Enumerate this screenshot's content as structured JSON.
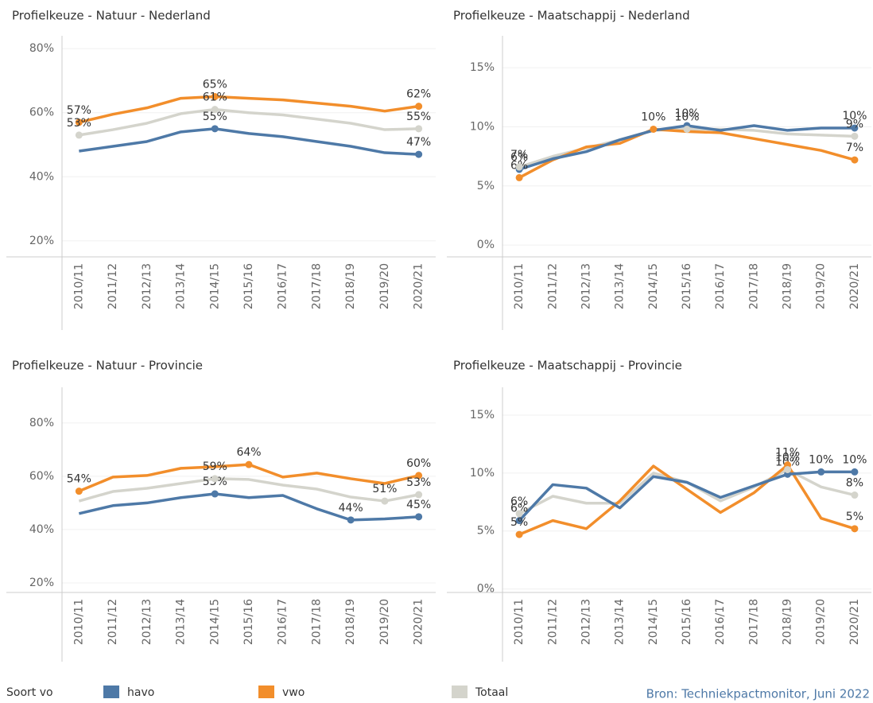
{
  "chart_data": [
    {
      "type": "line",
      "title": "Profielkeuze - Natuur - Nederland",
      "categories": [
        "2010/11",
        "2011/12",
        "2012/13",
        "2013/14",
        "2014/15",
        "2015/16",
        "2016/17",
        "2017/18",
        "2018/19",
        "2019/20",
        "2020/21"
      ],
      "ylim": [
        15,
        84
      ],
      "yticks": [
        {
          "value": 20,
          "label": "20%"
        },
        {
          "value": 40,
          "label": "40%"
        },
        {
          "value": 60,
          "label": "60%"
        },
        {
          "value": 80,
          "label": "80%"
        }
      ],
      "grid": true,
      "series": [
        {
          "name": "havo",
          "color": "#4e79a7",
          "values": [
            48,
            49.5,
            51,
            54,
            55,
            53.5,
            52.5,
            51,
            49.5,
            47.5,
            47
          ],
          "value_labels": [
            null,
            null,
            null,
            null,
            "55%",
            null,
            null,
            null,
            null,
            null,
            "47%"
          ]
        },
        {
          "name": "vwo",
          "color": "#f28e2b",
          "values": [
            57,
            59.5,
            61.5,
            64.5,
            65,
            64.5,
            64,
            63,
            62,
            60.5,
            62
          ],
          "value_labels": [
            "57%",
            null,
            null,
            null,
            "65%",
            null,
            null,
            null,
            null,
            null,
            "62%"
          ]
        },
        {
          "name": "Totaal",
          "color": "#d4d4cc",
          "values": [
            53,
            54.7,
            56.7,
            59.7,
            61,
            60,
            59.3,
            58,
            56.7,
            54.7,
            55
          ],
          "value_labels": [
            "53%",
            null,
            null,
            null,
            "61%",
            null,
            null,
            null,
            null,
            null,
            "55%"
          ]
        }
      ]
    },
    {
      "type": "line",
      "title": "Profielkeuze - Maatschappij - Nederland",
      "categories": [
        "2010/11",
        "2011/12",
        "2012/13",
        "2013/14",
        "2014/15",
        "2015/16",
        "2016/17",
        "2017/18",
        "2018/19",
        "2019/20",
        "2020/21"
      ],
      "ylim": [
        -1,
        17.7
      ],
      "yticks": [
        {
          "value": 0,
          "label": "0%"
        },
        {
          "value": 5,
          "label": "5%"
        },
        {
          "value": 10,
          "label": "10%"
        },
        {
          "value": 15,
          "label": "15%"
        }
      ],
      "grid": true,
      "series": [
        {
          "name": "havo",
          "color": "#4e79a7",
          "values": [
            6.4,
            7.3,
            7.9,
            8.9,
            9.7,
            10.1,
            9.7,
            10.1,
            9.7,
            9.9,
            9.9
          ],
          "value_labels": [
            "6%",
            null,
            null,
            null,
            null,
            "10%",
            null,
            null,
            null,
            null,
            "10%"
          ]
        },
        {
          "name": "vwo",
          "color": "#f28e2b",
          "values": [
            5.7,
            7.2,
            8.3,
            8.6,
            9.8,
            9.6,
            9.5,
            9.0,
            8.5,
            8.0,
            7.2
          ],
          "value_labels": [
            "6%",
            null,
            null,
            null,
            "10%",
            null,
            null,
            null,
            null,
            null,
            "7%"
          ]
        },
        {
          "name": "Totaal",
          "color": "#d4d4cc",
          "values": [
            6.6,
            7.5,
            8.2,
            8.9,
            9.7,
            9.8,
            9.8,
            9.7,
            9.4,
            9.3,
            9.2
          ],
          "value_labels": [
            "7%",
            null,
            null,
            null,
            null,
            "10%",
            null,
            null,
            null,
            null,
            "9%"
          ]
        }
      ]
    },
    {
      "type": "line",
      "title": "Profielkeuze - Natuur - Provincie",
      "categories": [
        "2010/11",
        "2011/12",
        "2012/13",
        "2013/14",
        "2014/15",
        "2015/16",
        "2016/17",
        "2017/18",
        "2018/19",
        "2019/20",
        "2020/21"
      ],
      "ylim": [
        16.4,
        93.4
      ],
      "yticks": [
        {
          "value": 20,
          "label": "20%"
        },
        {
          "value": 40,
          "label": "40%"
        },
        {
          "value": 60,
          "label": "60%"
        },
        {
          "value": 80,
          "label": "80%"
        }
      ],
      "grid": true,
      "series": [
        {
          "name": "havo",
          "color": "#4e79a7",
          "values": [
            46,
            49,
            50,
            52,
            53.4,
            52,
            52.8,
            47.8,
            43.6,
            44,
            44.8
          ],
          "value_labels": [
            null,
            null,
            null,
            null,
            "53%",
            null,
            null,
            null,
            "44%",
            null,
            "45%"
          ]
        },
        {
          "name": "vwo",
          "color": "#f28e2b",
          "values": [
            54.4,
            59.7,
            60.3,
            63,
            63.6,
            64.4,
            59.7,
            61.2,
            59.1,
            57.3,
            60.3
          ],
          "value_labels": [
            "54%",
            null,
            null,
            null,
            null,
            "64%",
            null,
            null,
            null,
            null,
            "60%"
          ]
        },
        {
          "name": "Totaal",
          "color": "#d4d4cc",
          "values": [
            50.7,
            54.3,
            55.5,
            57.3,
            59.1,
            58.8,
            56.7,
            55.2,
            52.2,
            50.7,
            53.1
          ],
          "value_labels": [
            null,
            null,
            null,
            null,
            "59%",
            null,
            null,
            null,
            null,
            "51%",
            "53%"
          ]
        }
      ]
    },
    {
      "type": "line",
      "title": "Profielkeuze - Maatschappij - Provincie",
      "categories": [
        "2010/11",
        "2011/12",
        "2012/13",
        "2013/14",
        "2014/15",
        "2015/16",
        "2016/17",
        "2017/18",
        "2018/19",
        "2019/20",
        "2020/21"
      ],
      "ylim": [
        -0.3,
        17.4
      ],
      "yticks": [
        {
          "value": 0,
          "label": "0%"
        },
        {
          "value": 5,
          "label": "5%"
        },
        {
          "value": 10,
          "label": "10%"
        },
        {
          "value": 15,
          "label": "15%"
        }
      ],
      "grid": true,
      "series": [
        {
          "name": "havo",
          "color": "#4e79a7",
          "values": [
            5.9,
            9.0,
            8.7,
            7.0,
            9.7,
            9.2,
            7.9,
            8.9,
            9.9,
            10.1,
            10.1
          ],
          "value_labels": [
            "6%",
            null,
            null,
            null,
            null,
            null,
            null,
            null,
            "10%",
            "10%",
            "10%"
          ]
        },
        {
          "name": "vwo",
          "color": "#f28e2b",
          "values": [
            4.7,
            5.9,
            5.2,
            7.6,
            10.6,
            8.6,
            6.6,
            8.3,
            10.7,
            6.1,
            5.2
          ],
          "value_labels": [
            "5%",
            null,
            null,
            null,
            null,
            null,
            null,
            null,
            "11%",
            null,
            "5%"
          ]
        },
        {
          "name": "Totaal",
          "color": "#d4d4cc",
          "values": [
            6.5,
            8.0,
            7.4,
            7.4,
            10.0,
            9.2,
            7.6,
            8.8,
            10.3,
            8.8,
            8.1
          ],
          "value_labels": [
            "6%",
            null,
            null,
            null,
            null,
            null,
            null,
            null,
            "10%",
            null,
            "8%"
          ]
        }
      ]
    }
  ],
  "legend": {
    "title": "Soort vo"
  },
  "source": "Bron: Techniekpactmonitor, Juni 2022"
}
